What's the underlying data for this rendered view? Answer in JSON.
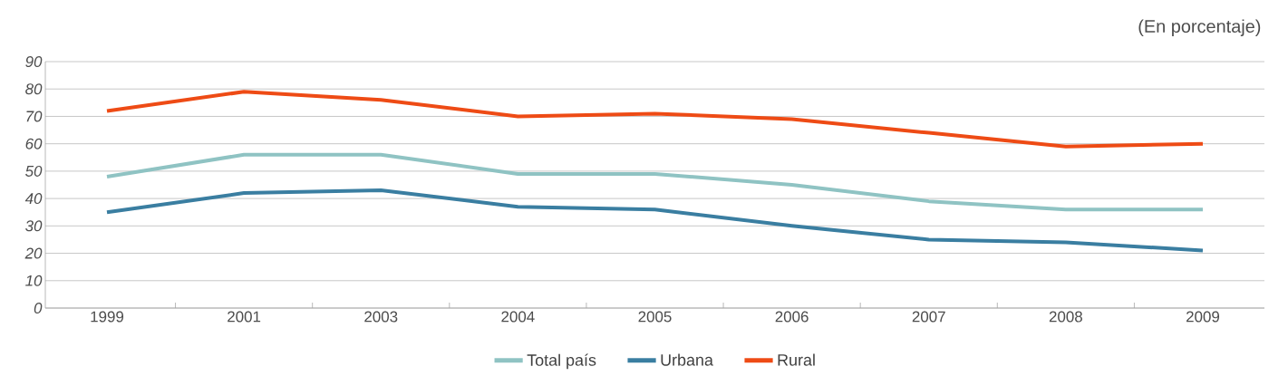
{
  "chart_data": {
    "type": "line",
    "annotations": [
      "(En porcentaje)"
    ],
    "categories": [
      "1999",
      "2001",
      "2003",
      "2004",
      "2005",
      "2006",
      "2007",
      "2008",
      "2009"
    ],
    "series": [
      {
        "name": "Total país",
        "color": "#8fc3c3",
        "values": [
          48,
          56,
          56,
          49,
          49,
          45,
          39,
          36,
          36
        ]
      },
      {
        "name": "Urbana",
        "color": "#3a7ea1",
        "values": [
          35,
          42,
          43,
          37,
          36,
          30,
          25,
          24,
          21
        ]
      },
      {
        "name": "Rural",
        "color": "#ee4b15",
        "values": [
          72,
          79,
          76,
          70,
          71,
          69,
          64,
          59,
          60
        ]
      }
    ],
    "ylim": [
      0,
      90
    ],
    "yticks": [
      0,
      10,
      20,
      30,
      40,
      50,
      60,
      70,
      80,
      90
    ],
    "grid": "y",
    "legend": "bottom",
    "marker": "none",
    "line_style": "solid"
  }
}
